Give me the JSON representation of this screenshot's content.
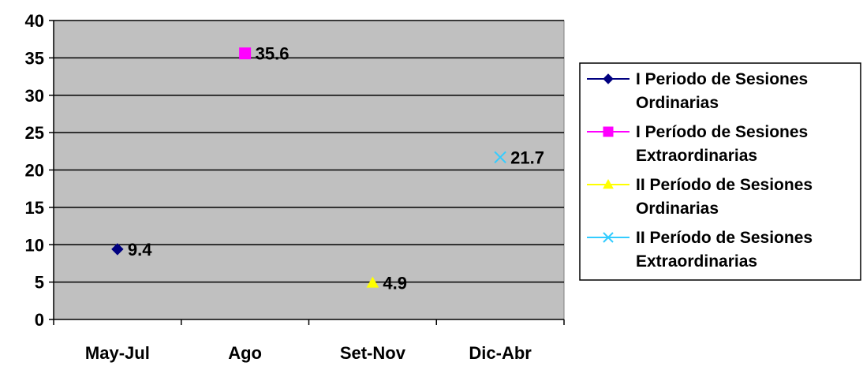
{
  "chart_data": {
    "type": "line",
    "categories": [
      "May-Jul",
      "Ago",
      "Set-Nov",
      "Dic-Abr"
    ],
    "ylim": [
      0,
      40
    ],
    "yticks": [
      0,
      5,
      10,
      15,
      20,
      25,
      30,
      35,
      40
    ],
    "grid": true,
    "legend_position": "right",
    "plot_background": "#c0c0c0",
    "series": [
      {
        "name": "I Periodo de Sesiones Ordinarias",
        "name_lines": [
          "I Periodo de Sesiones",
          "Ordinarias"
        ],
        "category": "May-Jul",
        "value": 9.4,
        "label": "9.4",
        "color": "#000080",
        "marker": "diamond"
      },
      {
        "name": "I Período de Sesiones Extraordinarias",
        "name_lines": [
          "I Período de Sesiones",
          "Extraordinarias"
        ],
        "category": "Ago",
        "value": 35.6,
        "label": "35.6",
        "color": "#ff00ff",
        "marker": "square"
      },
      {
        "name": "II Período de Sesiones Ordinarias",
        "name_lines": [
          "II Período de Sesiones",
          "Ordinarias"
        ],
        "category": "Set-Nov",
        "value": 4.9,
        "label": "4.9",
        "color": "#ffff00",
        "marker": "triangle"
      },
      {
        "name": "II Período de Sesiones Extraordinarias",
        "name_lines": [
          "II Período de Sesiones",
          "Extraordinarias"
        ],
        "category": "Dic-Abr",
        "value": 21.7,
        "label": "21.7",
        "color": "#33ccff",
        "marker": "x"
      }
    ]
  }
}
